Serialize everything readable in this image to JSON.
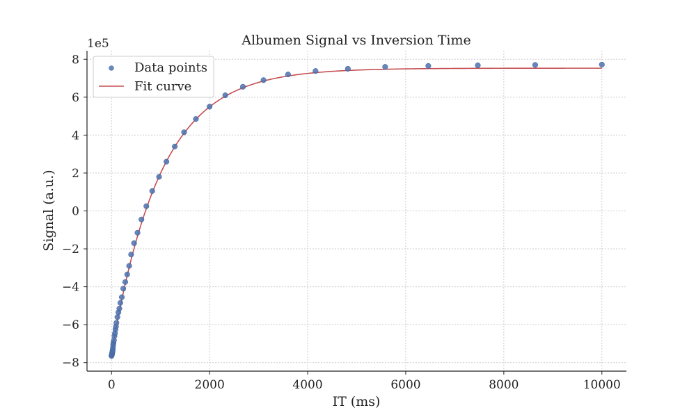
{
  "chart_data": {
    "type": "scatter",
    "title": "Albumen Signal vs Inversion Time",
    "xlabel": "IT (ms)",
    "ylabel": "Signal (a.u.)",
    "y_scale_label": "1e5",
    "xlim": [
      -500,
      10500
    ],
    "ylim": [
      -8.45,
      8.45
    ],
    "x_ticks": [
      0,
      2000,
      4000,
      6000,
      8000,
      10000
    ],
    "x_tick_labels": [
      "0",
      "2000",
      "4000",
      "6000",
      "8000",
      "10000"
    ],
    "y_ticks": [
      -8,
      -6,
      -4,
      -2,
      0,
      2,
      4,
      6,
      8
    ],
    "y_tick_labels": [
      "−8",
      "−6",
      "−4",
      "−2",
      "0",
      "2",
      "4",
      "6",
      "8"
    ],
    "grid": true,
    "legend": "top-left",
    "series": [
      {
        "name": "Data points",
        "kind": "scatter",
        "color": "#4c72b0",
        "x": [
          0,
          5,
          10,
          15,
          20,
          25,
          30,
          35,
          40,
          50,
          60,
          70,
          80,
          90,
          100,
          120,
          140,
          160,
          180,
          210,
          240,
          280,
          320,
          360,
          400,
          460,
          530,
          610,
          710,
          830,
          970,
          1120,
          1290,
          1480,
          1720,
          2000,
          2320,
          2680,
          3100,
          3600,
          4160,
          4820,
          5580,
          6460,
          7470,
          8640,
          10000
        ],
        "y": [
          -7.65,
          -7.6,
          -7.55,
          -7.48,
          -7.4,
          -7.32,
          -7.2,
          -7.05,
          -6.95,
          -6.82,
          -6.6,
          -6.45,
          -6.25,
          -6.1,
          -5.9,
          -5.6,
          -5.35,
          -5.15,
          -4.85,
          -4.55,
          -4.1,
          -3.75,
          -3.35,
          -2.9,
          -2.3,
          -1.7,
          -1.15,
          -0.45,
          0.25,
          1.05,
          1.8,
          2.6,
          3.4,
          4.15,
          4.85,
          5.5,
          6.1,
          6.55,
          6.9,
          7.2,
          7.38,
          7.5,
          7.6,
          7.65,
          7.68,
          7.7,
          7.72
        ]
      },
      {
        "name": "Fit curve",
        "kind": "line",
        "color": "#c44e52",
        "model": {
          "a": 7.53,
          "t1": 1000
        }
      }
    ]
  }
}
